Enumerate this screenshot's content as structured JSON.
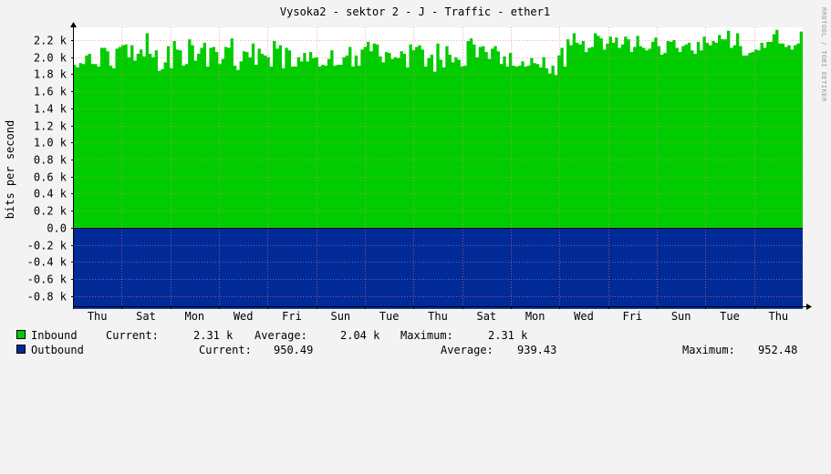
{
  "chart_data": {
    "type": "area",
    "title": "Vysoka2 - sektor 2 - J - Traffic - ether1",
    "ylabel": "bits per second",
    "watermark": "RRDTOOL / TOBI OETIKER",
    "ylim": [
      -920,
      2350
    ],
    "yticks": [
      {
        "value": 2200,
        "label": "2.2 k"
      },
      {
        "value": 2000,
        "label": "2.0 k"
      },
      {
        "value": 1800,
        "label": "1.8 k"
      },
      {
        "value": 1600,
        "label": "1.6 k"
      },
      {
        "value": 1400,
        "label": "1.4 k"
      },
      {
        "value": 1200,
        "label": "1.2 k"
      },
      {
        "value": 1000,
        "label": "1.0 k"
      },
      {
        "value": 800,
        "label": "0.8 k"
      },
      {
        "value": 600,
        "label": "0.6 k"
      },
      {
        "value": 400,
        "label": "0.4 k"
      },
      {
        "value": 200,
        "label": "0.2 k"
      },
      {
        "value": 0,
        "label": "0.0"
      },
      {
        "value": -200,
        "label": "-0.2 k"
      },
      {
        "value": -400,
        "label": "-0.4 k"
      },
      {
        "value": -600,
        "label": "-0.6 k"
      },
      {
        "value": -800,
        "label": "-0.8 k"
      }
    ],
    "xticks": [
      "Thu",
      "Sat",
      "Mon",
      "Wed",
      "Fri",
      "Sun",
      "Tue",
      "Thu",
      "Sat",
      "Mon",
      "Wed",
      "Fri",
      "Sun",
      "Tue",
      "Thu"
    ],
    "grid": true,
    "series": [
      {
        "name": "Inbound",
        "color": "#00cc00",
        "values": [
          1910,
          1880,
          1930,
          1920,
          2020,
          2040,
          1920,
          1920,
          1890,
          2110,
          2110,
          2070,
          1900,
          1870,
          2100,
          2120,
          2140,
          2150,
          2000,
          2140,
          1960,
          2040,
          2090,
          2010,
          2280,
          2040,
          2000,
          2080,
          1840,
          1860,
          1940,
          2130,
          1870,
          2190,
          2090,
          2080,
          1900,
          1920,
          2210,
          2140,
          1960,
          2040,
          2110,
          2170,
          1890,
          2110,
          2120,
          2060,
          1920,
          1980,
          2120,
          2110,
          2220,
          1900,
          1850,
          1950,
          2070,
          2060,
          2000,
          2160,
          1910,
          2100,
          2040,
          2020,
          2000,
          1890,
          2190,
          2100,
          2140,
          1870,
          2110,
          2080,
          1890,
          1890,
          2000,
          1950,
          2050,
          1950,
          2060,
          1990,
          2000,
          1890,
          1910,
          1900,
          1980,
          2080,
          1900,
          1910,
          1910,
          2000,
          2020,
          2120,
          1890,
          2020,
          1900,
          2090,
          2120,
          2180,
          2070,
          2160,
          2150,
          2010,
          1940,
          2060,
          2050,
          1980,
          2000,
          1990,
          2070,
          2040,
          1880,
          2150,
          2080,
          2120,
          2140,
          2090,
          1890,
          1990,
          2030,
          1830,
          2160,
          1970,
          1880,
          2130,
          2030,
          1940,
          2000,
          1970,
          1890,
          1900,
          2190,
          2220,
          2150,
          2000,
          2120,
          2130,
          2060,
          1980,
          2100,
          2130,
          2070,
          1920,
          2010,
          1890,
          2050,
          1900,
          1890,
          1900,
          1950,
          1890,
          1900,
          1990,
          1930,
          1920,
          1880,
          2000,
          1870,
          1810,
          1900,
          1790,
          2020,
          2110,
          1890,
          2210,
          2140,
          2280,
          2170,
          2150,
          2190,
          2060,
          2110,
          2120,
          2280,
          2250,
          2220,
          2090,
          2160,
          2240,
          2170,
          2230,
          2110,
          2150,
          2240,
          2210,
          2060,
          2120,
          2250,
          2130,
          2110,
          2080,
          2100,
          2180,
          2230,
          2130,
          2030,
          2050,
          2190,
          2180,
          2200,
          2110,
          2060,
          2130,
          2150,
          2170,
          2080,
          2040,
          2180,
          2080,
          2240,
          2170,
          2140,
          2190,
          2170,
          2260,
          2210,
          2210,
          2310,
          2110,
          2140,
          2280,
          2130,
          2020,
          2020,
          2050,
          2060,
          2090,
          2080,
          2170,
          2110,
          2180,
          2180,
          2270,
          2320,
          2160,
          2160,
          2120,
          2140,
          2090,
          2140,
          2160,
          2300
        ]
      },
      {
        "name": "Outbound",
        "color": "#002a97",
        "values": [
          -950.49
        ]
      }
    ],
    "legend": [
      {
        "name": "Inbound",
        "current_label": "Current:",
        "current": "2.31 k",
        "average_label": "Average:",
        "average": "2.04 k",
        "maximum_label": "Maximum:",
        "maximum": "2.31 k"
      },
      {
        "name": "Outbound",
        "current_label": "Current:",
        "current": "950.49",
        "average_label": "Average:",
        "average": "939.43",
        "maximum_label": "Maximum:",
        "maximum": "952.48"
      }
    ]
  }
}
